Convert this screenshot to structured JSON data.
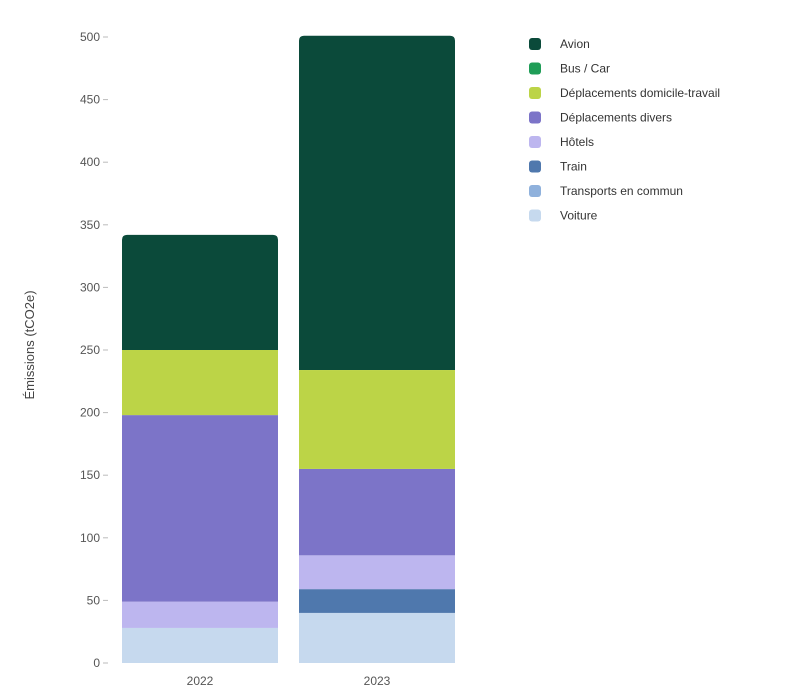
{
  "chart_data": {
    "type": "bar",
    "stacked": true,
    "categories": [
      "2022",
      "2023"
    ],
    "ylabel": "Émissions (tCO2e)",
    "ylim": [
      0,
      500
    ],
    "yticks": [
      0,
      50,
      100,
      150,
      200,
      250,
      300,
      350,
      400,
      450,
      500
    ],
    "grid": false,
    "legend_position": "top-right",
    "series": [
      {
        "name": "Voiture",
        "color": "#c6d9ee",
        "values": [
          28,
          40
        ]
      },
      {
        "name": "Transports en commun",
        "color": "#8fb1dc",
        "values": [
          0,
          0
        ]
      },
      {
        "name": "Train",
        "color": "#4f78ad",
        "values": [
          0,
          19
        ]
      },
      {
        "name": "Hôtels",
        "color": "#bdb6ef",
        "values": [
          21,
          27
        ]
      },
      {
        "name": "Déplacements divers",
        "color": "#7c74c8",
        "values": [
          149,
          69
        ]
      },
      {
        "name": "Déplacements domicile-travail",
        "color": "#bcd447",
        "values": [
          52,
          79
        ]
      },
      {
        "name": "Bus / Car",
        "color": "#1f9d57",
        "values": [
          0,
          0
        ]
      },
      {
        "name": "Avion",
        "color": "#0b4a3a",
        "values": [
          92,
          267
        ]
      }
    ],
    "legend_order": [
      "Avion",
      "Bus / Car",
      "Déplacements domicile-travail",
      "Déplacements divers",
      "Hôtels",
      "Train",
      "Transports en commun",
      "Voiture"
    ]
  }
}
